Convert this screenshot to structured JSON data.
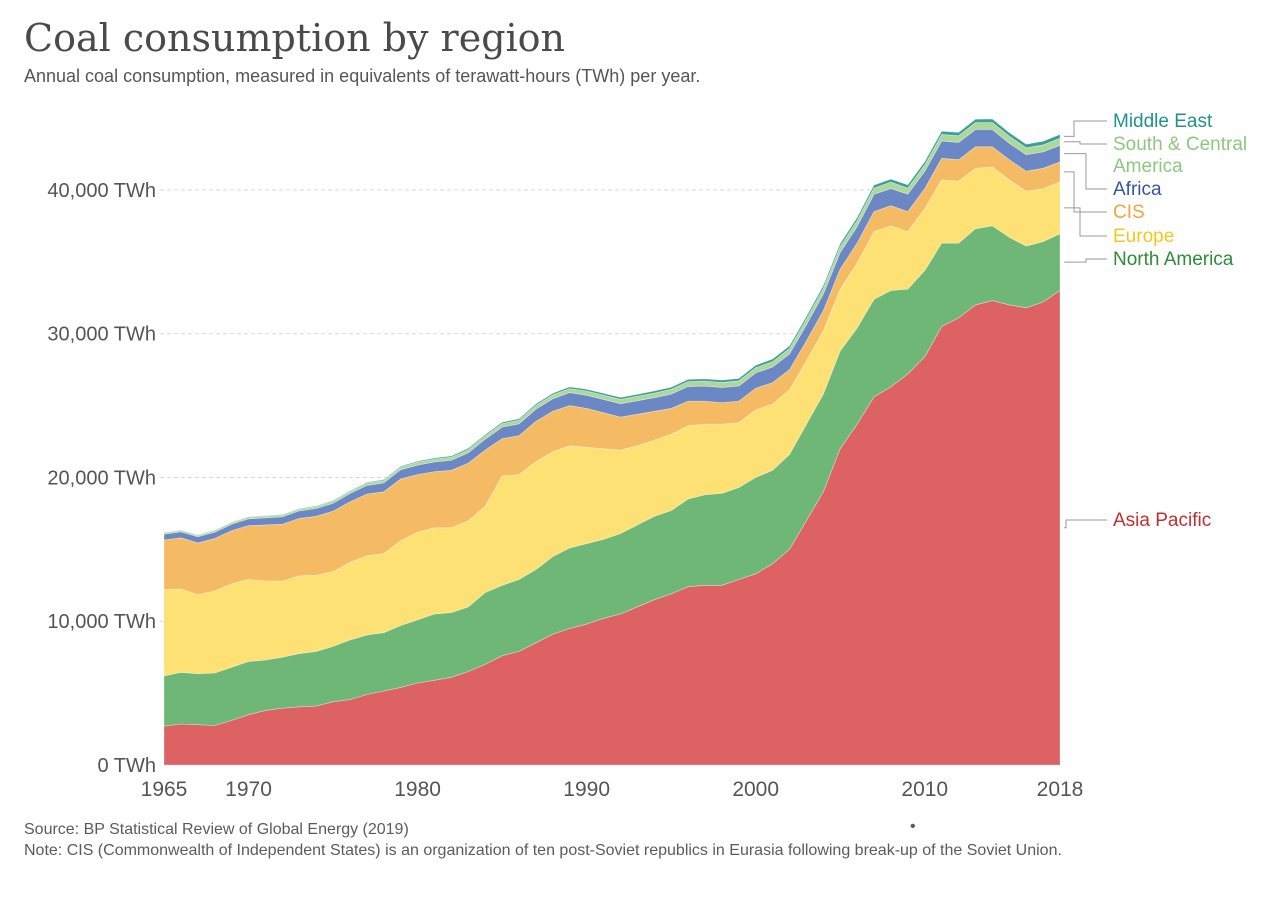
{
  "header": {
    "title": "Coal consumption by region",
    "subtitle": "Annual coal consumption, measured in equivalents of terawatt-hours (TWh) per year."
  },
  "footer": {
    "source": "Source: BP Statistical Review of Global Energy (2019)",
    "note": "Note: CIS (Commonwealth of Independent States) is an organization of ten post-Soviet republics in Eurasia following break-up of the Soviet Union.",
    "dot": "•"
  },
  "chart_data": {
    "type": "area",
    "stacked": true,
    "title": "Coal consumption by region",
    "subtitle": "Annual coal consumption, measured in equivalents of terawatt-hours (TWh) per year.",
    "xlabel": "",
    "ylabel": "",
    "x": [
      1965,
      1966,
      1967,
      1968,
      1969,
      1970,
      1971,
      1972,
      1973,
      1974,
      1975,
      1976,
      1977,
      1978,
      1979,
      1980,
      1981,
      1982,
      1983,
      1984,
      1985,
      1986,
      1987,
      1988,
      1989,
      1990,
      1991,
      1992,
      1993,
      1994,
      1995,
      1996,
      1997,
      1998,
      1999,
      2000,
      2001,
      2002,
      2003,
      2004,
      2005,
      2006,
      2007,
      2008,
      2009,
      2010,
      2011,
      2012,
      2013,
      2014,
      2015,
      2016,
      2017,
      2018
    ],
    "xlim": [
      1965,
      2018
    ],
    "x_ticks": [
      1965,
      1970,
      1980,
      1990,
      2000,
      2010,
      2018
    ],
    "ylim": [
      0,
      45000
    ],
    "y_ticks": [
      0,
      10000,
      20000,
      30000,
      40000
    ],
    "y_tick_labels": [
      "0 TWh",
      "10,000 TWh",
      "20,000 TWh",
      "30,000 TWh",
      "40,000 TWh"
    ],
    "grid": "horizontal dashed",
    "legend": "right, labels at series end",
    "series": [
      {
        "name": "Asia Pacific",
        "color": "#dc6264",
        "label_color": "#c0302f",
        "values": [
          2700,
          2850,
          2800,
          2750,
          3100,
          3500,
          3800,
          3950,
          4050,
          4100,
          4400,
          4550,
          4900,
          5150,
          5400,
          5700,
          5900,
          6100,
          6500,
          7000,
          7600,
          7900,
          8500,
          9100,
          9500,
          9800,
          10200,
          10500,
          11000,
          11500,
          11900,
          12400,
          12500,
          12500,
          12900,
          13300,
          14000,
          15000,
          17000,
          19000,
          22000,
          23700,
          25600,
          26300,
          27200,
          28400,
          30500,
          31100,
          32000,
          32300,
          32000,
          31800,
          32200,
          33000
        ]
      },
      {
        "name": "North America",
        "color": "#6fb777",
        "label_color": "#2e8b3a",
        "values": [
          3500,
          3600,
          3550,
          3650,
          3700,
          3700,
          3500,
          3550,
          3700,
          3800,
          3850,
          4150,
          4150,
          4050,
          4300,
          4400,
          4600,
          4500,
          4500,
          5000,
          4900,
          5000,
          5100,
          5400,
          5600,
          5600,
          5500,
          5600,
          5700,
          5800,
          5800,
          6100,
          6300,
          6400,
          6400,
          6700,
          6500,
          6600,
          6700,
          6800,
          6800,
          6700,
          6800,
          6700,
          5900,
          6000,
          5800,
          5200,
          5300,
          5200,
          4700,
          4300,
          4200,
          3950
        ]
      },
      {
        "name": "Europe",
        "color": "#fde175",
        "label_color": "#f2c81d",
        "values": [
          6000,
          5800,
          5500,
          5700,
          5800,
          5700,
          5500,
          5300,
          5400,
          5300,
          5200,
          5400,
          5500,
          5500,
          5900,
          6100,
          6000,
          5900,
          6000,
          6000,
          7600,
          7300,
          7500,
          7300,
          7100,
          6700,
          6300,
          5800,
          5500,
          5300,
          5300,
          5100,
          4900,
          4800,
          4500,
          4700,
          4600,
          4500,
          4400,
          4400,
          4300,
          4500,
          4700,
          4500,
          4000,
          4300,
          4400,
          4300,
          4200,
          4100,
          4000,
          3800,
          3700,
          3600
        ]
      },
      {
        "name": "CIS",
        "color": "#f5ba64",
        "label_color": "#f3a23d",
        "values": [
          3450,
          3550,
          3600,
          3650,
          3700,
          3750,
          3900,
          3950,
          4000,
          4100,
          4200,
          4200,
          4300,
          4300,
          4300,
          4000,
          3900,
          4000,
          4000,
          3900,
          2600,
          2700,
          2800,
          2800,
          2800,
          2700,
          2500,
          2300,
          2200,
          2000,
          1800,
          1700,
          1600,
          1500,
          1500,
          1500,
          1500,
          1400,
          1400,
          1400,
          1400,
          1400,
          1400,
          1400,
          1400,
          1400,
          1500,
          1500,
          1500,
          1400,
          1400,
          1400,
          1400,
          1400
        ]
      },
      {
        "name": "Africa",
        "color": "#6b88c4",
        "label_color": "#3555a0",
        "values": [
          400,
          420,
          430,
          440,
          450,
          470,
          490,
          510,
          520,
          540,
          560,
          580,
          600,
          620,
          640,
          660,
          680,
          700,
          720,
          760,
          800,
          830,
          850,
          880,
          900,
          920,
          930,
          930,
          940,
          950,
          1000,
          1030,
          1050,
          1060,
          1060,
          1070,
          1080,
          1090,
          1120,
          1150,
          1150,
          1150,
          1200,
          1200,
          1200,
          1200,
          1200,
          1200,
          1200,
          1200,
          1150,
          1150,
          1150,
          1150
        ]
      },
      {
        "name": "South & Central America",
        "color": "#aed89a",
        "label_color": "#8dc87d",
        "values": [
          100,
          100,
          100,
          110,
          110,
          120,
          120,
          130,
          130,
          140,
          150,
          150,
          160,
          170,
          180,
          190,
          200,
          210,
          220,
          230,
          240,
          250,
          260,
          270,
          280,
          290,
          300,
          300,
          310,
          320,
          330,
          340,
          350,
          350,
          360,
          370,
          380,
          380,
          390,
          400,
          410,
          420,
          430,
          440,
          430,
          450,
          460,
          470,
          480,
          490,
          490,
          480,
          480,
          490
        ]
      },
      {
        "name": "Middle East",
        "color": "#3a9e9a",
        "label_color": "#22918e",
        "values": [
          20,
          20,
          20,
          25,
          25,
          30,
          30,
          35,
          35,
          40,
          45,
          50,
          55,
          60,
          65,
          70,
          75,
          80,
          85,
          90,
          95,
          100,
          105,
          110,
          115,
          120,
          125,
          130,
          135,
          140,
          145,
          150,
          155,
          160,
          165,
          170,
          175,
          180,
          185,
          190,
          195,
          200,
          205,
          210,
          215,
          220,
          225,
          230,
          235,
          240,
          245,
          250,
          255,
          260
        ]
      }
    ],
    "legend_labels": [
      {
        "name": "Middle East",
        "lines": [
          "Middle East"
        ]
      },
      {
        "name": "South & Central America",
        "lines": [
          "South & Central",
          "America"
        ]
      },
      {
        "name": "Africa",
        "lines": [
          "Africa"
        ]
      },
      {
        "name": "CIS",
        "lines": [
          "CIS"
        ]
      },
      {
        "name": "Europe",
        "lines": [
          "Europe"
        ]
      },
      {
        "name": "North America",
        "lines": [
          "North America"
        ]
      },
      {
        "name": "Asia Pacific",
        "lines": [
          "Asia Pacific"
        ]
      }
    ]
  }
}
